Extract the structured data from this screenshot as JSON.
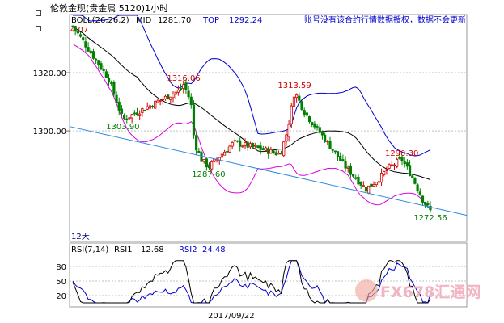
{
  "window": {
    "title": "伦敦金现(贵金属 5120)1小时",
    "icon": "window-icon"
  },
  "main_panel": {
    "indicator_name": "BOLL(26,26,2)",
    "mid_label": "MID",
    "mid_value": "1281.70",
    "top_label": "TOP",
    "top_value": "1292.24",
    "notice": "账号没有该合约行情数据授权，数据不会更新",
    "partial_top_left_value": "4.07",
    "period_label": "12天",
    "y_ticks": [
      "1320.00",
      "1300.00"
    ]
  },
  "rsi_panel": {
    "indicator_name": "RSI(7,14)",
    "rsi1_label": "RSI1",
    "rsi1_value": "12.68",
    "rsi2_label": "RSI2",
    "rsi2_value": "24.48",
    "y_ticks": [
      "80",
      "50",
      "20"
    ]
  },
  "x_axis": {
    "date_label": "2017/09/22"
  },
  "watermark": "FX678汇通网",
  "colors": {
    "up_candle": "#d00000",
    "down_candle": "#008000",
    "boll_upper": "#0000cc",
    "boll_mid": "#000000",
    "boll_lower": "#e000e0",
    "trendline": "#2a8be0",
    "grid": "#c0c0c0",
    "high_label": "#d00000",
    "low_label": "#008000",
    "rsi1": "#000000",
    "rsi2": "#0000cc"
  },
  "chart_data": {
    "type": "candlestick",
    "indicator": "BOLL(26,26,2)",
    "y_ticks": [
      1320,
      1300
    ],
    "ylim": [
      1262,
      1340
    ],
    "annotations": [
      {
        "text": "1316.06",
        "kind": "high",
        "value": 1316.06
      },
      {
        "text": "1303.90",
        "kind": "low",
        "value": 1303.9
      },
      {
        "text": "1313.59",
        "kind": "high",
        "value": 1313.59
      },
      {
        "text": "1287.60",
        "kind": "low",
        "value": 1287.6
      },
      {
        "text": "1290.30",
        "kind": "high",
        "value": 1290.3
      },
      {
        "text": "1272.56",
        "kind": "low",
        "value": 1272.56
      }
    ],
    "trendline": {
      "from": 1301.5,
      "to": 1271.0
    },
    "rsi": {
      "indicator": "RSI(7,14)",
      "rsi1_last": 12.68,
      "rsi2_last": 24.48,
      "y_ticks": [
        80,
        50,
        20
      ],
      "ylim": [
        0,
        100
      ]
    }
  }
}
